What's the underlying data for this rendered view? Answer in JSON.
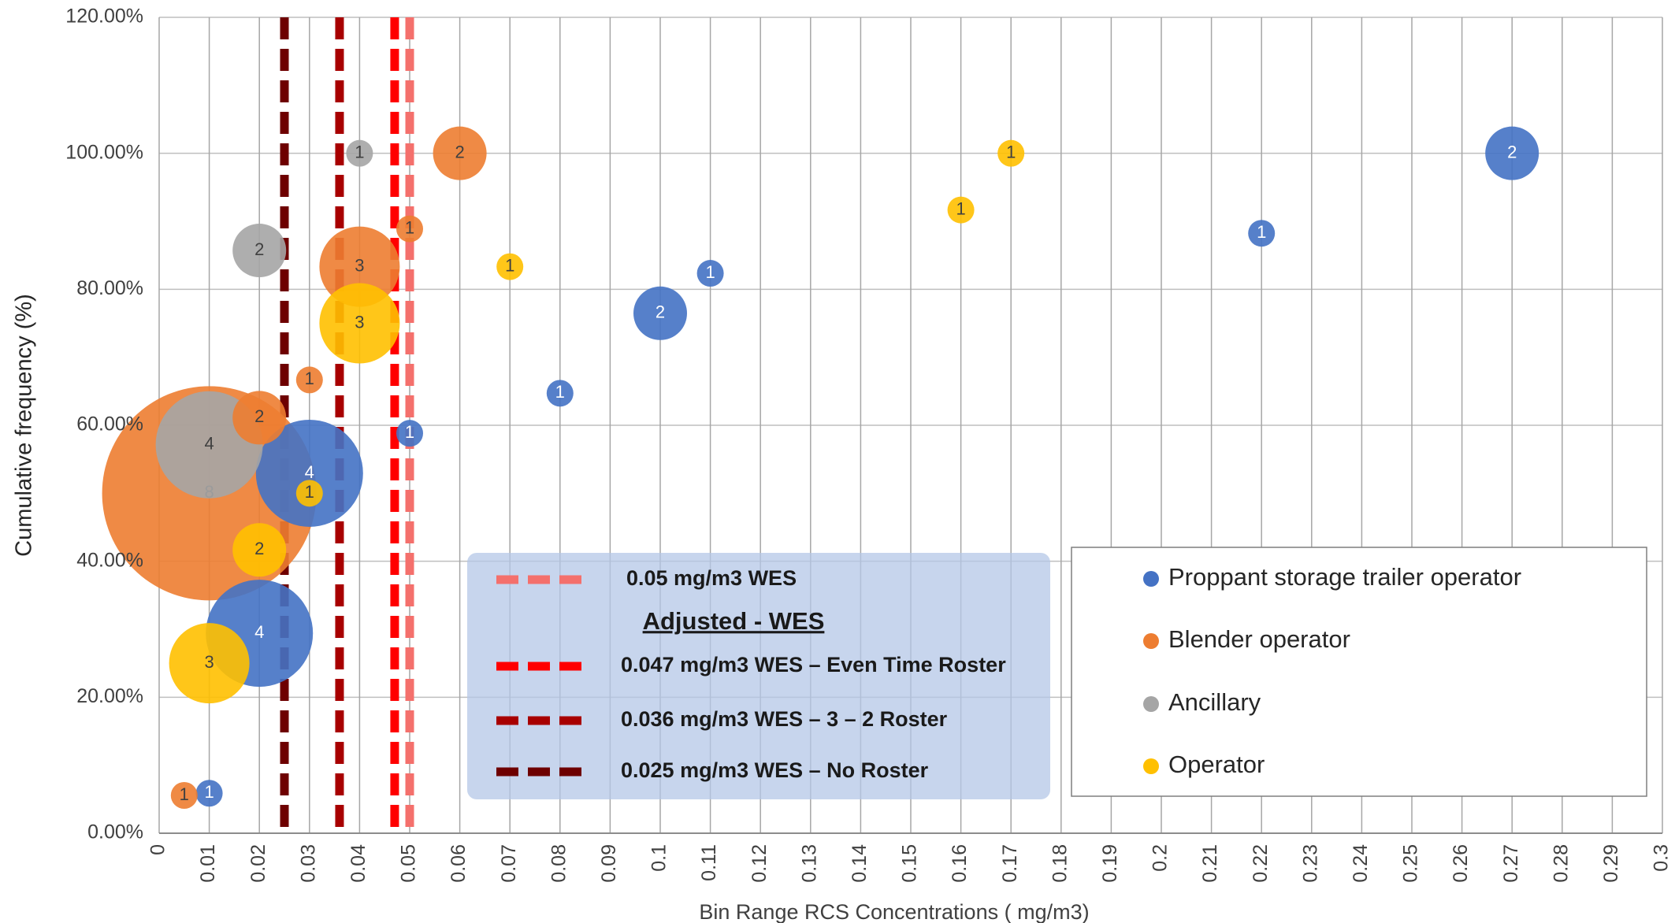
{
  "chart_data": {
    "type": "bubble",
    "x_label": "Bin Range RCS Concentrations ( mg/m3)",
    "y_label": "Cumulative frequency (%)",
    "xlim": [
      0,
      0.3
    ],
    "ylim": [
      0,
      120
    ],
    "xticks": [
      0,
      0.01,
      0.02,
      0.03,
      0.04,
      0.05,
      0.06,
      0.07,
      0.08,
      0.09,
      0.1,
      0.11,
      0.12,
      0.13,
      0.14,
      0.15,
      0.16,
      0.17,
      0.18,
      0.19,
      0.2,
      0.21,
      0.22,
      0.23,
      0.24,
      0.25,
      0.26,
      0.27,
      0.28,
      0.29,
      0.3
    ],
    "yticks": [
      {
        "value": 0,
        "label": "0.00%"
      },
      {
        "value": 20,
        "label": "20.00%"
      },
      {
        "value": 40,
        "label": "40.00%"
      },
      {
        "value": 60,
        "label": "60.00%"
      },
      {
        "value": 80,
        "label": "80.00%"
      },
      {
        "value": 100,
        "label": "100.00%"
      },
      {
        "value": 120,
        "label": "120.00%"
      }
    ],
    "grid": true,
    "series": [
      {
        "name": "Proppant storage trailer operator",
        "color": "#4472c4",
        "label_color": "#ffffff",
        "x": [
          0.01,
          0.02,
          0.03,
          0.05,
          0.08,
          0.1,
          0.11,
          0.22,
          0.27
        ],
        "values": [
          5.88,
          29.41,
          52.94,
          58.82,
          64.71,
          76.47,
          82.35,
          88.24,
          100
        ],
        "sizes": [
          1,
          4,
          4,
          1,
          1,
          2,
          1,
          1,
          2
        ]
      },
      {
        "name": "Blender operator",
        "color": "#ed7d31",
        "label_color": "#404040",
        "x": [
          0.005,
          0.01,
          0.02,
          0.03,
          0.04,
          0.05,
          0.06
        ],
        "values": [
          5.56,
          50,
          61.11,
          66.67,
          83.33,
          88.89,
          100
        ],
        "sizes": [
          1,
          8,
          2,
          1,
          3,
          1,
          2
        ]
      },
      {
        "name": "Ancillary",
        "color": "#a5a5a5",
        "label_color": "#404040",
        "x": [
          0.01,
          0.02,
          0.04
        ],
        "values": [
          57.14,
          85.71,
          100
        ],
        "sizes": [
          4,
          2,
          1
        ]
      },
      {
        "name": "Operator",
        "color": "#ffc000",
        "label_color": "#404040",
        "x": [
          0.01,
          0.02,
          0.03,
          0.04,
          0.07,
          0.16,
          0.17
        ],
        "values": [
          25,
          41.67,
          50,
          75,
          83.33,
          91.67,
          100
        ],
        "sizes": [
          3,
          2,
          1,
          3,
          1,
          1,
          1
        ]
      }
    ],
    "reference_lines": {
      "title": "Adjusted - WES",
      "lines": [
        {
          "value": 0.05,
          "label": "0.05 mg/m3 WES",
          "color": "#f4706c"
        },
        {
          "value": 0.047,
          "label": "0.047 mg/m3 WES – Even Time Roster",
          "color": "#ff0000"
        },
        {
          "value": 0.036,
          "label": "0.036 mg/m3 WES – 3 – 2 Roster",
          "color": "#a80000"
        },
        {
          "value": 0.025,
          "label": "0.025 mg/m3 WES – No Roster",
          "color": "#6e0000"
        }
      ]
    }
  }
}
